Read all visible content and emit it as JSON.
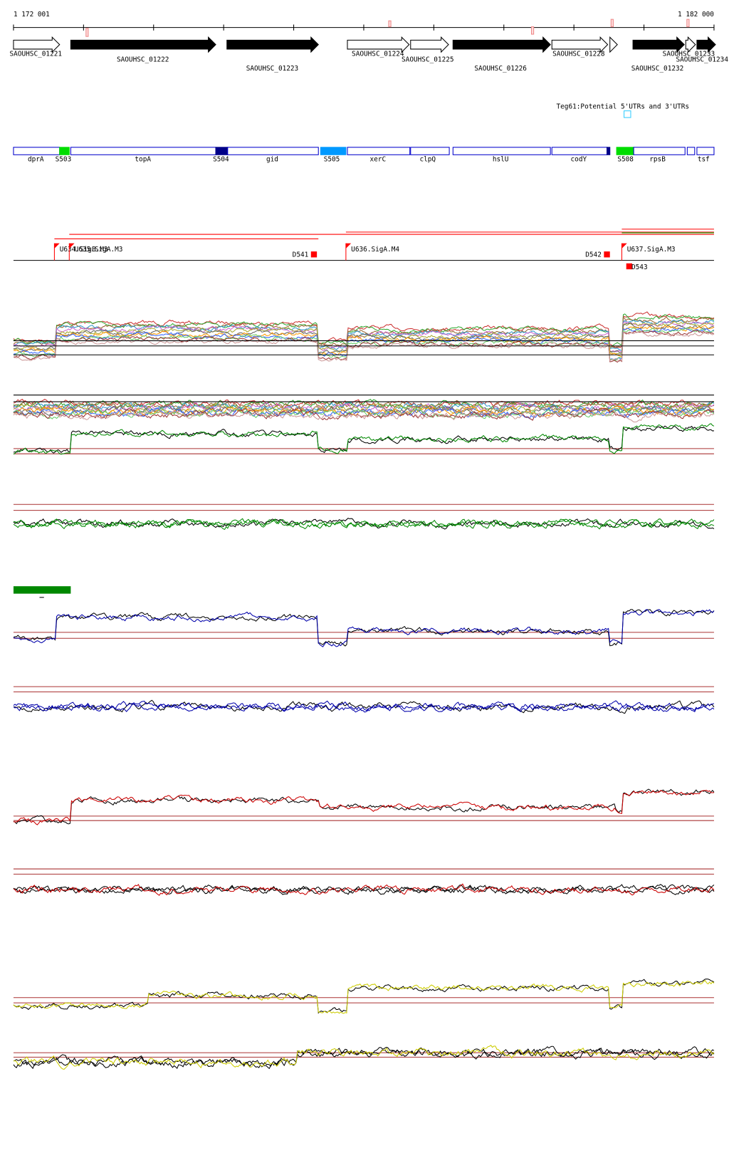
{
  "coordinates": {
    "start": "1 172 001",
    "end": "1 182 000"
  },
  "genes": [
    "SAOUHSC_01221",
    "SAOUHSC_01222",
    "SAOUHSC_01223",
    "SAOUHSC_01224",
    "SAOUHSC_01225",
    "SAOUHSC_01226",
    "SAOUHSC_01228",
    "SAOUHSC_01232",
    "SAOUHSC_01233",
    "SAOUHSC_01234"
  ],
  "track_title": "Teg61:Potential 5'UTRs and 3'UTRs",
  "segments": [
    "dprA",
    "S503",
    "topA",
    "S504",
    "gid",
    "S505",
    "xerC",
    "clpQ",
    "hslU",
    "codY",
    "S508",
    "rpsB",
    "tsf"
  ],
  "promoters": [
    "U634.SigB.M3",
    "U635.SigA.M3",
    "D541",
    "U636.SigA.M4",
    "D542",
    "U637.SigA.M3",
    "D543"
  ]
}
